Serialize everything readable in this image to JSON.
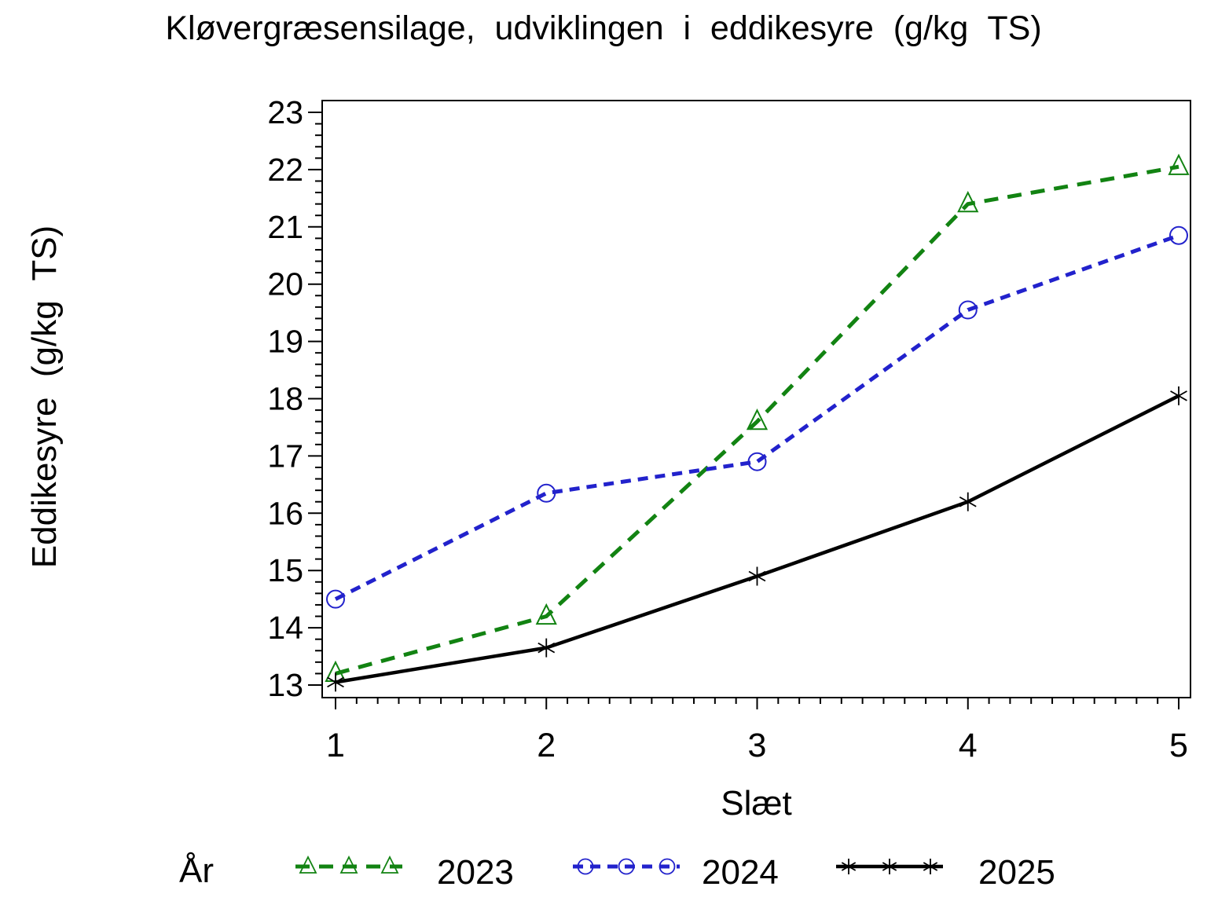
{
  "chart_data": {
    "type": "line",
    "title": "Kløvergræsensilage, udviklingen i eddikesyre (g/kg TS)",
    "xlabel": "Slæt",
    "ylabel": "Eddikesyre (g/kg TS)",
    "legend_title": "År",
    "legend_position": "bottom",
    "grid": false,
    "x": [
      1,
      2,
      3,
      4,
      5
    ],
    "x_tick_labels": [
      "1",
      "2",
      "3",
      "4",
      "5"
    ],
    "y_ticks": [
      13,
      14,
      15,
      16,
      17,
      18,
      19,
      20,
      21,
      22,
      23
    ],
    "ylim": [
      13,
      23
    ],
    "xlim": [
      1,
      5
    ],
    "x_minor_step": 0.1,
    "y_minor_step": 0.2,
    "series": [
      {
        "name": "2023",
        "color": "#128312",
        "line_style": "dashed",
        "dash": [
          18,
          12
        ],
        "marker": "triangle",
        "values": [
          13.2,
          14.2,
          17.6,
          21.4,
          22.05
        ]
      },
      {
        "name": "2024",
        "color": "#2222cc",
        "line_style": "dashed",
        "dash": [
          13,
          9
        ],
        "marker": "circle",
        "values": [
          14.5,
          16.35,
          16.9,
          19.55,
          20.85
        ]
      },
      {
        "name": "2025",
        "color": "#000000",
        "line_style": "solid",
        "dash": null,
        "marker": "star",
        "values": [
          13.05,
          13.65,
          14.9,
          16.2,
          18.05
        ]
      }
    ]
  }
}
